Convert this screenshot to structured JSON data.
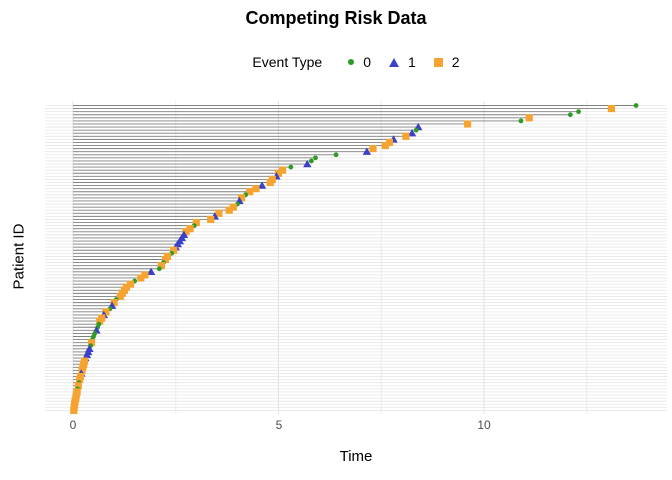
{
  "title": "Competing Risk Data",
  "legend": {
    "title": "Event Type",
    "items": [
      {
        "label": "0",
        "marker": "circle-icon",
        "color": "#2E9B27"
      },
      {
        "label": "1",
        "marker": "triangle-icon",
        "color": "#3A41C6"
      },
      {
        "label": "2",
        "marker": "square-icon",
        "color": "#F5A431"
      }
    ]
  },
  "axes": {
    "x_label": "Time",
    "y_label": "Patient ID",
    "x_ticks": [
      "0",
      "5",
      "10"
    ],
    "x_tick_values": [
      0,
      5,
      10
    ],
    "x_minor_ticks": [
      2.5,
      7.5,
      12.5
    ],
    "x_range": [
      -0.68,
      14.45
    ],
    "y_rows": 100
  },
  "colors": {
    "event0": "#2E9B27",
    "event1": "#3A41C6",
    "event2": "#F5A431",
    "segment": "#808080",
    "grid_major": "#e0e0e0",
    "grid_minor": "#ececec",
    "grid_row": "#e7e7e7",
    "tick_text": "#4d4d4d",
    "background": "#ffffff"
  },
  "chart_data": {
    "type": "scatter",
    "title": "Competing Risk Data",
    "xlabel": "Time",
    "ylabel": "Patient ID",
    "xlim": [
      -0.68,
      14.45
    ],
    "grid": true,
    "legend_position": "top",
    "legend_title": "Event Type",
    "series_legend": [
      {
        "name": "0",
        "marker": "circle",
        "color": "#2E9B27"
      },
      {
        "name": "1",
        "marker": "triangle",
        "color": "#3A41C6"
      },
      {
        "name": "2",
        "marker": "square",
        "color": "#F5A431"
      }
    ],
    "description": "Each of 100 patients (rows, sorted by time, longest at top) has a gray segment from time 0 to event time, ending in a marker coded by event type. Pairs are [time, event_type], listed top row to bottom row.",
    "patients": [
      [
        13.7,
        0
      ],
      [
        13.1,
        2
      ],
      [
        12.3,
        0
      ],
      [
        12.1,
        0
      ],
      [
        11.1,
        2
      ],
      [
        10.9,
        0
      ],
      [
        9.6,
        2
      ],
      [
        8.4,
        1
      ],
      [
        8.35,
        0
      ],
      [
        8.25,
        1
      ],
      [
        8.1,
        2
      ],
      [
        7.8,
        1
      ],
      [
        7.7,
        2
      ],
      [
        7.6,
        2
      ],
      [
        7.3,
        2
      ],
      [
        7.15,
        1
      ],
      [
        6.4,
        0
      ],
      [
        5.9,
        0
      ],
      [
        5.8,
        0
      ],
      [
        5.7,
        1
      ],
      [
        5.3,
        0
      ],
      [
        5.1,
        2
      ],
      [
        5.0,
        2
      ],
      [
        4.95,
        1
      ],
      [
        4.85,
        2
      ],
      [
        4.8,
        2
      ],
      [
        4.6,
        1
      ],
      [
        4.45,
        2
      ],
      [
        4.3,
        2
      ],
      [
        4.2,
        0
      ],
      [
        4.1,
        2
      ],
      [
        4.05,
        1
      ],
      [
        4.0,
        0
      ],
      [
        3.9,
        2
      ],
      [
        3.8,
        2
      ],
      [
        3.55,
        2
      ],
      [
        3.45,
        1
      ],
      [
        3.35,
        2
      ],
      [
        3.0,
        2
      ],
      [
        2.95,
        0
      ],
      [
        2.85,
        2
      ],
      [
        2.75,
        2
      ],
      [
        2.7,
        1
      ],
      [
        2.65,
        1
      ],
      [
        2.6,
        1
      ],
      [
        2.55,
        1
      ],
      [
        2.5,
        1
      ],
      [
        2.45,
        2
      ],
      [
        2.4,
        0
      ],
      [
        2.3,
        2
      ],
      [
        2.25,
        2
      ],
      [
        2.2,
        0
      ],
      [
        2.15,
        2
      ],
      [
        2.1,
        0
      ],
      [
        1.9,
        1
      ],
      [
        1.75,
        2
      ],
      [
        1.65,
        2
      ],
      [
        1.5,
        0
      ],
      [
        1.4,
        2
      ],
      [
        1.3,
        2
      ],
      [
        1.25,
        2
      ],
      [
        1.2,
        2
      ],
      [
        1.15,
        2
      ],
      [
        1.05,
        0
      ],
      [
        1.0,
        2
      ],
      [
        0.95,
        1
      ],
      [
        0.9,
        0
      ],
      [
        0.8,
        2
      ],
      [
        0.75,
        1
      ],
      [
        0.7,
        2
      ],
      [
        0.65,
        2
      ],
      [
        0.63,
        0
      ],
      [
        0.6,
        0
      ],
      [
        0.57,
        1
      ],
      [
        0.53,
        0
      ],
      [
        0.5,
        0
      ],
      [
        0.47,
        0
      ],
      [
        0.45,
        2
      ],
      [
        0.43,
        0
      ],
      [
        0.4,
        1
      ],
      [
        0.37,
        1
      ],
      [
        0.34,
        1
      ],
      [
        0.3,
        1
      ],
      [
        0.28,
        2
      ],
      [
        0.26,
        2
      ],
      [
        0.24,
        2
      ],
      [
        0.22,
        2
      ],
      [
        0.2,
        1
      ],
      [
        0.18,
        2
      ],
      [
        0.16,
        2
      ],
      [
        0.15,
        0
      ],
      [
        0.13,
        2
      ],
      [
        0.11,
        0
      ],
      [
        0.1,
        2
      ],
      [
        0.08,
        2
      ],
      [
        0.07,
        2
      ],
      [
        0.05,
        2
      ],
      [
        0.04,
        2
      ],
      [
        0.03,
        2
      ],
      [
        0.02,
        2
      ]
    ]
  }
}
